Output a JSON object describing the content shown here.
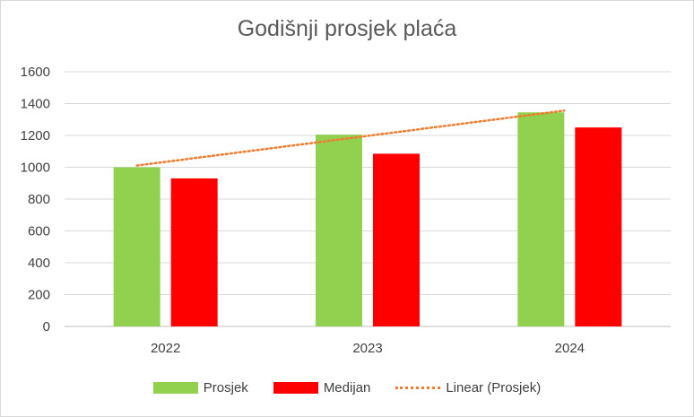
{
  "chart_data": {
    "type": "bar",
    "title": "Godišnji prosjek plaća",
    "categories": [
      "2022",
      "2023",
      "2024"
    ],
    "series": [
      {
        "name": "Prosjek",
        "values": [
          1000,
          1205,
          1345
        ],
        "color": "#92d050"
      },
      {
        "name": "Medijan",
        "values": [
          930,
          1085,
          1250
        ],
        "color": "#ff0000"
      }
    ],
    "trendline": {
      "name": "Linear (Prosjek)",
      "of_series": "Prosjek",
      "kind": "linear",
      "color": "#ed7d31",
      "style": "dotted"
    },
    "ylim": [
      0,
      1600
    ],
    "yticks": [
      0,
      200,
      400,
      600,
      800,
      1000,
      1200,
      1400,
      1600
    ],
    "grid": true,
    "legend": "bottom"
  }
}
